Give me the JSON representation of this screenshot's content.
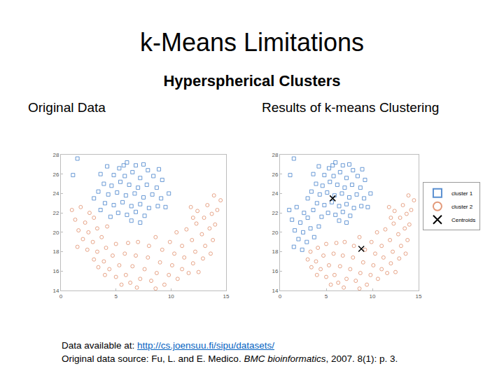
{
  "slide": {
    "title": "k-Means Limitations",
    "subtitle": "Hyperspherical Clusters",
    "footer": {
      "link_prefix": "Data available at: ",
      "link": "http://cs.joensuu.fi/sipu/datasets/",
      "source_parts": [
        "Original data source: Fu, L. and E. Medico. ",
        "BMC bioinformatics",
        ", 2007. 8(1): p. 3."
      ]
    }
  },
  "chart_data": [
    {
      "type": "scatter",
      "title": "Original Data",
      "xlim": [
        0,
        15
      ],
      "xticks": [
        0,
        5,
        10,
        15
      ],
      "ylim": [
        14,
        28
      ],
      "yticks": [
        14,
        16,
        18,
        20,
        22,
        24,
        26,
        28
      ],
      "grid": false,
      "series": [
        {
          "color": "#5a8fd0",
          "marker": "square",
          "x": [
            1.5,
            1.1,
            6.0,
            4.2,
            5.3,
            6.8,
            7.9,
            3.6,
            4.8,
            5.8,
            6.5,
            7.2,
            8.4,
            9.2,
            3.9,
            4.6,
            5.4,
            6.2,
            7.0,
            7.8,
            8.7,
            3.4,
            4.3,
            5.1,
            5.9,
            6.7,
            7.5,
            8.3,
            9.1,
            9.8,
            4.0,
            4.8,
            5.6,
            6.4,
            7.2,
            8.0,
            8.8,
            5.2,
            6.0,
            6.8,
            7.6,
            9.5,
            3.6,
            4.5,
            6.4,
            7.2,
            5.7,
            7.5,
            8.9,
            3.0
          ],
          "values": [
            27.6,
            25.9,
            27.2,
            26.8,
            26.6,
            26.9,
            26.4,
            26.0,
            25.9,
            25.8,
            26.2,
            25.6,
            25.8,
            25.4,
            25.0,
            24.8,
            25.2,
            24.9,
            24.6,
            24.9,
            24.6,
            24.2,
            23.9,
            24.1,
            23.8,
            24.0,
            23.6,
            23.9,
            23.5,
            24.0,
            23.0,
            22.8,
            23.1,
            22.7,
            22.9,
            22.5,
            22.7,
            22.0,
            21.8,
            22.1,
            21.7,
            22.6,
            22.3,
            21.6,
            21.2,
            21.0,
            26.9,
            27.0,
            26.5,
            23.5
          ]
        },
        {
          "color": "#e39a7a",
          "marker": "circle",
          "x": [
            1.0,
            1.8,
            2.6,
            1.3,
            2.2,
            3.0,
            1.6,
            2.5,
            3.3,
            2.0,
            2.9,
            3.7,
            4.2,
            1.5,
            2.4,
            3.3,
            4.1,
            3.0,
            3.9,
            4.7,
            5.0,
            4.4,
            5.3,
            5.8,
            6.1,
            5.0,
            5.9,
            6.5,
            6.8,
            7.0,
            6.3,
            7.2,
            7.6,
            7.9,
            8.0,
            8.2,
            8.7,
            9.0,
            9.2,
            8.6,
            9.4,
            9.8,
            10.1,
            10.3,
            9.9,
            10.6,
            11.0,
            11.2,
            11.0,
            10.5,
            11.6,
            12.0,
            12.2,
            11.9,
            11.4,
            12.5,
            12.9,
            13.1,
            12.8,
            12.3,
            13.6,
            13.8,
            13.5,
            13.0,
            12.4,
            14.0,
            13.7,
            13.3,
            14.2,
            14.5,
            13.9,
            12.0,
            11.8,
            6.9,
            5.5,
            8.6,
            4.0,
            3.4
          ],
          "values": [
            22.3,
            22.6,
            22.0,
            21.3,
            21.0,
            21.5,
            20.2,
            20.0,
            20.4,
            19.3,
            19.0,
            19.5,
            20.6,
            18.5,
            18.2,
            18.0,
            18.4,
            17.2,
            17.0,
            17.6,
            18.8,
            16.2,
            16.6,
            17.8,
            18.9,
            15.4,
            15.6,
            16.5,
            17.6,
            19.0,
            14.8,
            15.2,
            16.2,
            17.4,
            18.6,
            15.0,
            15.8,
            16.9,
            18.2,
            19.5,
            14.6,
            15.6,
            16.6,
            17.8,
            19.0,
            15.2,
            16.2,
            17.4,
            18.6,
            20.0,
            15.8,
            16.8,
            18.0,
            19.2,
            20.3,
            15.9,
            17.3,
            18.6,
            19.8,
            20.9,
            17.8,
            19.2,
            20.4,
            21.5,
            22.2,
            20.8,
            21.9,
            22.8,
            22.3,
            23.3,
            23.8,
            21.5,
            22.6,
            14.3,
            14.6,
            14.2,
            15.6,
            16.4
          ]
        }
      ]
    },
    {
      "type": "scatter",
      "title": "Results of k-means Clustering",
      "xlim": [
        0,
        15
      ],
      "xticks": [
        0,
        5,
        10,
        15
      ],
      "ylim": [
        14,
        28
      ],
      "yticks": [
        14,
        16,
        18,
        20,
        22,
        24,
        26,
        28
      ],
      "grid": false,
      "legend": "right",
      "series": [
        {
          "name": "cluster 1",
          "color": "#5a8fd0",
          "marker": "square",
          "x": [
            1.5,
            1.1,
            6.0,
            4.2,
            5.3,
            6.8,
            7.9,
            3.6,
            4.8,
            5.8,
            6.5,
            7.2,
            8.4,
            9.2,
            3.9,
            4.6,
            5.4,
            6.2,
            7.0,
            7.8,
            8.7,
            3.4,
            4.3,
            5.1,
            5.9,
            6.7,
            7.5,
            8.3,
            9.1,
            9.8,
            4.0,
            4.8,
            5.6,
            6.4,
            7.2,
            8.0,
            8.8,
            5.2,
            6.0,
            6.8,
            7.6,
            9.5,
            3.6,
            4.5,
            6.4,
            7.2,
            5.7,
            7.5,
            8.9,
            3.0,
            1.0,
            1.8,
            2.6,
            1.3,
            2.2,
            3.0,
            1.6,
            2.5,
            3.3,
            2.0,
            2.9,
            3.7,
            4.2,
            1.5,
            2.4
          ],
          "values": [
            27.6,
            25.9,
            27.2,
            26.8,
            26.6,
            26.9,
            26.4,
            26.0,
            25.9,
            25.8,
            26.2,
            25.6,
            25.8,
            25.4,
            25.0,
            24.8,
            25.2,
            24.9,
            24.6,
            24.9,
            24.6,
            24.2,
            23.9,
            24.1,
            23.8,
            24.0,
            23.6,
            23.9,
            23.5,
            24.0,
            23.0,
            22.8,
            23.1,
            22.7,
            22.9,
            22.5,
            22.7,
            22.0,
            21.8,
            22.1,
            21.7,
            22.6,
            22.3,
            21.6,
            21.2,
            21.0,
            26.9,
            27.0,
            26.5,
            23.5,
            22.3,
            22.6,
            22.0,
            21.3,
            21.0,
            21.5,
            20.2,
            20.0,
            20.4,
            19.3,
            19.0,
            19.5,
            20.6,
            18.5,
            18.2
          ]
        },
        {
          "name": "cluster 2",
          "color": "#e39a7a",
          "marker": "circle",
          "x": [
            3.3,
            4.1,
            3.0,
            3.9,
            4.7,
            5.0,
            4.4,
            5.3,
            5.8,
            6.1,
            5.0,
            5.9,
            6.5,
            6.8,
            7.0,
            6.3,
            7.2,
            7.6,
            7.9,
            8.0,
            8.2,
            8.7,
            9.0,
            9.2,
            8.6,
            9.4,
            9.8,
            10.1,
            10.3,
            9.9,
            10.6,
            11.0,
            11.2,
            11.0,
            10.5,
            11.6,
            12.0,
            12.2,
            11.9,
            11.4,
            12.5,
            12.9,
            13.1,
            12.8,
            12.3,
            13.6,
            13.8,
            13.5,
            13.0,
            12.4,
            14.0,
            13.7,
            13.3,
            14.2,
            14.5,
            13.9,
            12.0,
            11.8,
            6.9,
            5.5,
            8.6,
            4.0,
            3.4
          ],
          "values": [
            18.0,
            18.4,
            17.2,
            17.0,
            17.6,
            18.8,
            16.2,
            16.6,
            17.8,
            18.9,
            15.4,
            15.6,
            16.5,
            17.6,
            19.0,
            14.8,
            15.2,
            16.2,
            17.4,
            18.6,
            15.0,
            15.8,
            16.9,
            18.2,
            19.5,
            14.6,
            15.6,
            16.6,
            17.8,
            19.0,
            15.2,
            16.2,
            17.4,
            18.6,
            20.0,
            15.8,
            16.8,
            18.0,
            19.2,
            20.3,
            15.9,
            17.3,
            18.6,
            19.8,
            20.9,
            17.8,
            19.2,
            20.4,
            21.5,
            22.2,
            20.8,
            21.9,
            22.8,
            22.3,
            23.3,
            23.8,
            21.5,
            22.6,
            14.3,
            14.6,
            14.2,
            15.6,
            16.4
          ]
        },
        {
          "name": "Centroids",
          "color": "#000000",
          "marker": "x",
          "x": [
            5.7,
            8.8
          ],
          "values": [
            23.5,
            18.3
          ]
        }
      ]
    }
  ]
}
